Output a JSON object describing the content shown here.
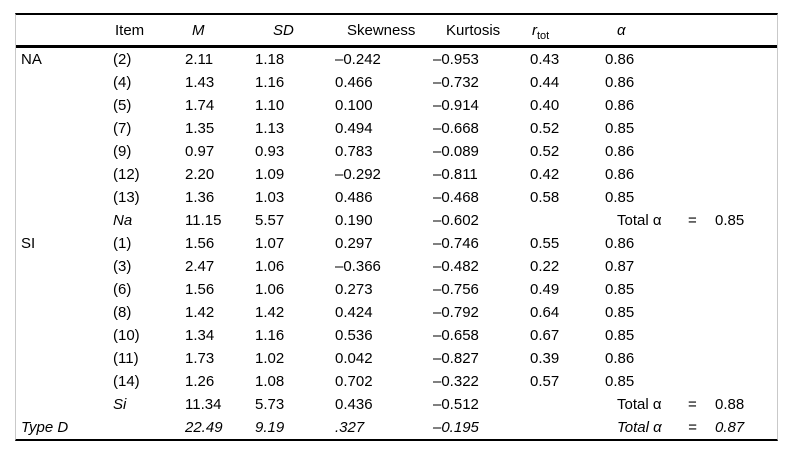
{
  "table": {
    "header": {
      "group": "",
      "item": "Item",
      "m": "M",
      "sd": "SD",
      "skewness": "Skewness",
      "kurtosis": "Kurtosis",
      "r_base": "r",
      "r_sub": "tot",
      "alpha": "α"
    },
    "total_row_label": "Total α",
    "rows": [
      {
        "group": "NA",
        "item": "(2)",
        "m": "2.11",
        "sd": "1.18",
        "skew": "–0.242",
        "kurt": "–0.953",
        "rtot": "0.43",
        "alpha": "0.86",
        "eq": "",
        "total": "",
        "italic_fields": [],
        "row_italic": false
      },
      {
        "group": "",
        "item": "(4)",
        "m": "1.43",
        "sd": "1.16",
        "skew": "0.466",
        "kurt": "–0.732",
        "rtot": "0.44",
        "alpha": "0.86",
        "eq": "",
        "total": "",
        "italic_fields": [],
        "row_italic": false
      },
      {
        "group": "",
        "item": "(5)",
        "m": "1.74",
        "sd": "1.10",
        "skew": "0.100",
        "kurt": "–0.914",
        "rtot": "0.40",
        "alpha": "0.86",
        "eq": "",
        "total": "",
        "italic_fields": [],
        "row_italic": false
      },
      {
        "group": "",
        "item": "(7)",
        "m": "1.35",
        "sd": "1.13",
        "skew": "0.494",
        "kurt": "–0.668",
        "rtot": "0.52",
        "alpha": "0.85",
        "eq": "",
        "total": "",
        "italic_fields": [],
        "row_italic": false
      },
      {
        "group": "",
        "item": "(9)",
        "m": "0.97",
        "sd": "0.93",
        "skew": "0.783",
        "kurt": "–0.089",
        "rtot": "0.52",
        "alpha": "0.86",
        "eq": "",
        "total": "",
        "italic_fields": [],
        "row_italic": false
      },
      {
        "group": "",
        "item": "(12)",
        "m": "2.20",
        "sd": "1.09",
        "skew": "–0.292",
        "kurt": "–0.811",
        "rtot": "0.42",
        "alpha": "0.86",
        "eq": "",
        "total": "",
        "italic_fields": [],
        "row_italic": false
      },
      {
        "group": "",
        "item": "(13)",
        "m": "1.36",
        "sd": "1.03",
        "skew": "0.486",
        "kurt": "–0.468",
        "rtot": "0.58",
        "alpha": "0.85",
        "eq": "",
        "total": "",
        "italic_fields": [],
        "row_italic": false
      },
      {
        "group": "",
        "item": "Na",
        "m": "11.15",
        "sd": "5.57",
        "skew": "0.190",
        "kurt": "–0.602",
        "rtot": "",
        "alpha": "Total α",
        "eq": "=",
        "total": "0.85",
        "italic_fields": [
          "item"
        ],
        "row_italic": false
      },
      {
        "group": "SI",
        "item": "(1)",
        "m": "1.56",
        "sd": "1.07",
        "skew": "0.297",
        "kurt": "–0.746",
        "rtot": "0.55",
        "alpha": "0.86",
        "eq": "",
        "total": "",
        "italic_fields": [],
        "row_italic": false
      },
      {
        "group": "",
        "item": "(3)",
        "m": "2.47",
        "sd": "1.06",
        "skew": "–0.366",
        "kurt": "–0.482",
        "rtot": "0.22",
        "alpha": "0.87",
        "eq": "",
        "total": "",
        "italic_fields": [],
        "row_italic": false
      },
      {
        "group": "",
        "item": "(6)",
        "m": "1.56",
        "sd": "1.06",
        "skew": "0.273",
        "kurt": "–0.756",
        "rtot": "0.49",
        "alpha": "0.85",
        "eq": "",
        "total": "",
        "italic_fields": [],
        "row_italic": false
      },
      {
        "group": "",
        "item": "(8)",
        "m": "1.42",
        "sd": "1.42",
        "skew": "0.424",
        "kurt": "–0.792",
        "rtot": "0.64",
        "alpha": "0.85",
        "eq": "",
        "total": "",
        "italic_fields": [],
        "row_italic": false
      },
      {
        "group": "",
        "item": "(10)",
        "m": "1.34",
        "sd": "1.16",
        "skew": "0.536",
        "kurt": "–0.658",
        "rtot": "0.67",
        "alpha": "0.85",
        "eq": "",
        "total": "",
        "italic_fields": [],
        "row_italic": false
      },
      {
        "group": "",
        "item": "(11)",
        "m": "1.73",
        "sd": "1.02",
        "skew": "0.042",
        "kurt": "–0.827",
        "rtot": "0.39",
        "alpha": "0.86",
        "eq": "",
        "total": "",
        "italic_fields": [],
        "row_italic": false
      },
      {
        "group": "",
        "item": "(14)",
        "m": "1.26",
        "sd": "1.08",
        "skew": "0.702",
        "kurt": "–0.322",
        "rtot": "0.57",
        "alpha": "0.85",
        "eq": "",
        "total": "",
        "italic_fields": [],
        "row_italic": false
      },
      {
        "group": "",
        "item": "Si",
        "m": "11.34",
        "sd": "5.73",
        "skew": "0.436",
        "kurt": "–0.512",
        "rtot": "",
        "alpha": "Total α",
        "eq": "=",
        "total": "0.88",
        "italic_fields": [
          "item"
        ],
        "row_italic": false
      },
      {
        "group": "Type D",
        "item": "",
        "m": "22.49",
        "sd": "9.19",
        "skew": ".327",
        "kurt": "–0.195",
        "rtot": "",
        "alpha": "Total α",
        "eq": "=",
        "total": "0.87",
        "italic_fields": [],
        "row_italic": true
      }
    ],
    "colors": {
      "text": "#000000",
      "rule": "#000000",
      "frame_hairline": "#c9c9c9",
      "background": "#ffffff"
    }
  }
}
